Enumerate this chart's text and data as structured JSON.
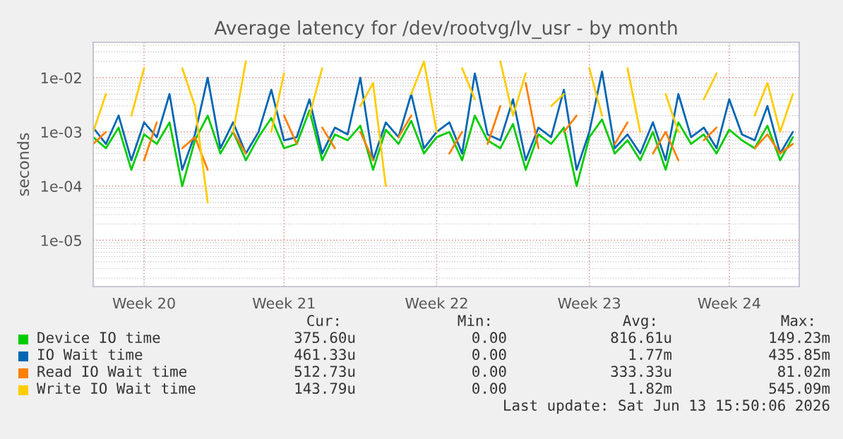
{
  "chart_data": {
    "type": "line",
    "title": "Average latency for /dev/rootvg/lv_usr - by month",
    "ylabel": "seconds",
    "categories": [
      null,
      null,
      null,
      null,
      "Week 20",
      null,
      null,
      null,
      null,
      null,
      null,
      null,
      null,
      null,
      null,
      "Week 21",
      null,
      null,
      null,
      null,
      null,
      null,
      null,
      null,
      null,
      null,
      null,
      "Week 22",
      null,
      null,
      null,
      null,
      null,
      null,
      null,
      null,
      null,
      null,
      null,
      "Week 23",
      null,
      null,
      null,
      null,
      null,
      null,
      null,
      null,
      null,
      null,
      "Week 24",
      null,
      null,
      null,
      null,
      null
    ],
    "log": "y",
    "ylim": [
      1.4e-06,
      0.045
    ],
    "yticks": [
      {
        "value": 1e-05,
        "label": "1e-05"
      },
      {
        "value": 0.0001,
        "label": "1e-04"
      },
      {
        "value": 0.001,
        "label": "1e-03"
      },
      {
        "value": 0.01,
        "label": "1e-02"
      }
    ],
    "grid": true,
    "legend": "bottom",
    "series": [
      {
        "name": "Device IO time",
        "color": "#00cc00",
        "values": [
          0.0008,
          0.0005,
          0.0012,
          0.0002,
          0.0009,
          0.0006,
          0.0015,
          0.0001,
          0.0007,
          0.002,
          0.0004,
          0.001,
          0.0003,
          0.0008,
          0.0018,
          0.0005,
          0.0006,
          0.0025,
          0.0003,
          0.0009,
          0.0007,
          0.0013,
          0.0002,
          0.0011,
          0.0006,
          0.0016,
          0.0004,
          0.0008,
          0.001,
          0.0003,
          0.002,
          0.0007,
          0.0005,
          0.0014,
          0.0002,
          0.0009,
          0.0006,
          0.0012,
          0.0001,
          0.0008,
          0.0017,
          0.0004,
          0.0007,
          0.0003,
          0.001,
          0.0002,
          0.0015,
          0.0006,
          0.0009,
          0.0004,
          0.0011,
          0.0007,
          0.0005,
          0.0013,
          0.0003,
          0.0008
        ]
      },
      {
        "name": "IO Wait time",
        "color": "#0066b3",
        "values": [
          0.0012,
          0.0006,
          0.002,
          0.0003,
          0.0015,
          0.0008,
          0.005,
          0.0002,
          0.0009,
          0.01,
          0.0005,
          0.0015,
          0.0004,
          0.001,
          0.006,
          0.0007,
          0.0008,
          0.004,
          0.0004,
          0.0012,
          0.0009,
          0.01,
          0.0003,
          0.0015,
          0.0008,
          0.005,
          0.0005,
          0.001,
          0.0015,
          0.0004,
          0.012,
          0.0009,
          0.0007,
          0.004,
          0.0003,
          0.0012,
          0.0008,
          0.006,
          0.0002,
          0.001,
          0.013,
          0.0005,
          0.0009,
          0.0004,
          0.0015,
          0.0003,
          0.005,
          0.0008,
          0.0012,
          0.0005,
          0.004,
          0.0009,
          0.0007,
          0.003,
          0.0004,
          0.001
        ]
      },
      {
        "name": "Read IO Wait time",
        "color": "#ff8000",
        "values": [
          0.0006,
          0.001,
          null,
          null,
          0.0003,
          0.0015,
          null,
          0.0005,
          0.0008,
          0.0002,
          null,
          0.001,
          0.0004,
          null,
          null,
          0.002,
          0.0006,
          null,
          0.0012,
          0.0005,
          null,
          0.001,
          0.0003,
          null,
          0.0008,
          0.002,
          null,
          null,
          0.0004,
          0.001,
          null,
          0.0006,
          0.003,
          null,
          0.008,
          0.0005,
          null,
          0.001,
          0.002,
          null,
          null,
          0.0006,
          0.0015,
          null,
          0.0004,
          0.001,
          0.0003,
          null,
          0.0007,
          0.0012,
          null,
          null,
          0.0005,
          0.0009,
          0.0004,
          0.0006
        ]
      },
      {
        "name": "Write IO Wait time",
        "color": "#ffcc00",
        "values": [
          0.001,
          0.005,
          null,
          0.002,
          0.015,
          null,
          null,
          0.015,
          0.003,
          5e-05,
          null,
          0.001,
          0.02,
          null,
          0.001,
          0.012,
          null,
          0.002,
          0.015,
          null,
          null,
          0.003,
          0.008,
          0.0001,
          null,
          0.005,
          0.02,
          0.001,
          null,
          0.015,
          0.004,
          null,
          0.02,
          0.002,
          0.012,
          null,
          0.003,
          0.005,
          null,
          0.015,
          0.002,
          null,
          0.015,
          0.001,
          null,
          0.005,
          0.001,
          null,
          0.004,
          0.012,
          null,
          null,
          0.002,
          0.008,
          0.001,
          0.005
        ]
      }
    ],
    "annotations": [
      "Cur:",
      "Min:",
      "Avg:",
      "Max:",
      "375.60u",
      "0.00",
      "816.61u",
      "149.23m",
      "461.33u",
      "0.00",
      "1.77m",
      "435.85m",
      "512.73u",
      "0.00",
      "333.33u",
      "81.02m",
      "143.79u",
      "0.00",
      "1.82m",
      "545.09m",
      "Last update: Sat Jun 13 15:50:06 2026"
    ]
  }
}
